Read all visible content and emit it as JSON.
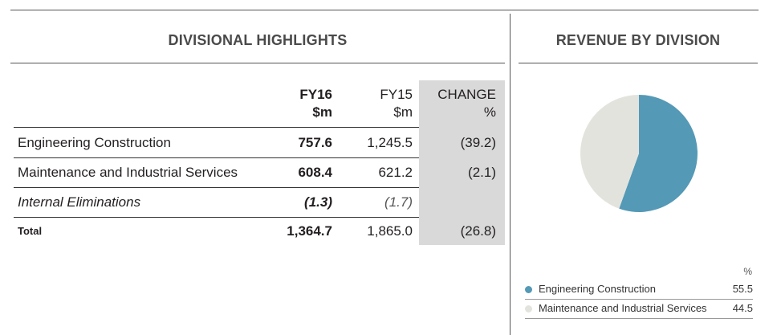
{
  "table": {
    "title": "DIVISIONAL HIGHLIGHTS",
    "headers": {
      "fy16": [
        "FY16",
        "$m"
      ],
      "fy15": [
        "FY15",
        "$m"
      ],
      "change": [
        "CHANGE",
        "%"
      ]
    },
    "rows": [
      {
        "label": "Engineering Construction",
        "fy16": "757.6",
        "fy15": "1,245.5",
        "change": "(39.2)"
      },
      {
        "label": "Maintenance and Industrial Services",
        "fy16": "608.4",
        "fy15": "621.2",
        "change": "(2.1)"
      },
      {
        "label": "Internal Eliminations",
        "fy16": "(1.3)",
        "fy15": "(1.7)",
        "change": ""
      },
      {
        "label": "Total",
        "fy16": "1,364.7",
        "fy15": "1,865.0",
        "change": "(26.8)"
      }
    ],
    "colors": {
      "change_column_bg": "#d9d9d9"
    }
  },
  "chart_data": {
    "type": "pie",
    "title": "REVENUE BY DIVISION",
    "unit_label": "%",
    "categories": [
      "Engineering Construction",
      "Maintenance and Industrial Services"
    ],
    "values": [
      55.5,
      44.5
    ],
    "value_labels": [
      "55.5",
      "44.5"
    ],
    "colors": [
      "#5499b6",
      "#e3e3de"
    ],
    "legend_position": "bottom-right",
    "start": "top",
    "direction": "clockwise"
  }
}
